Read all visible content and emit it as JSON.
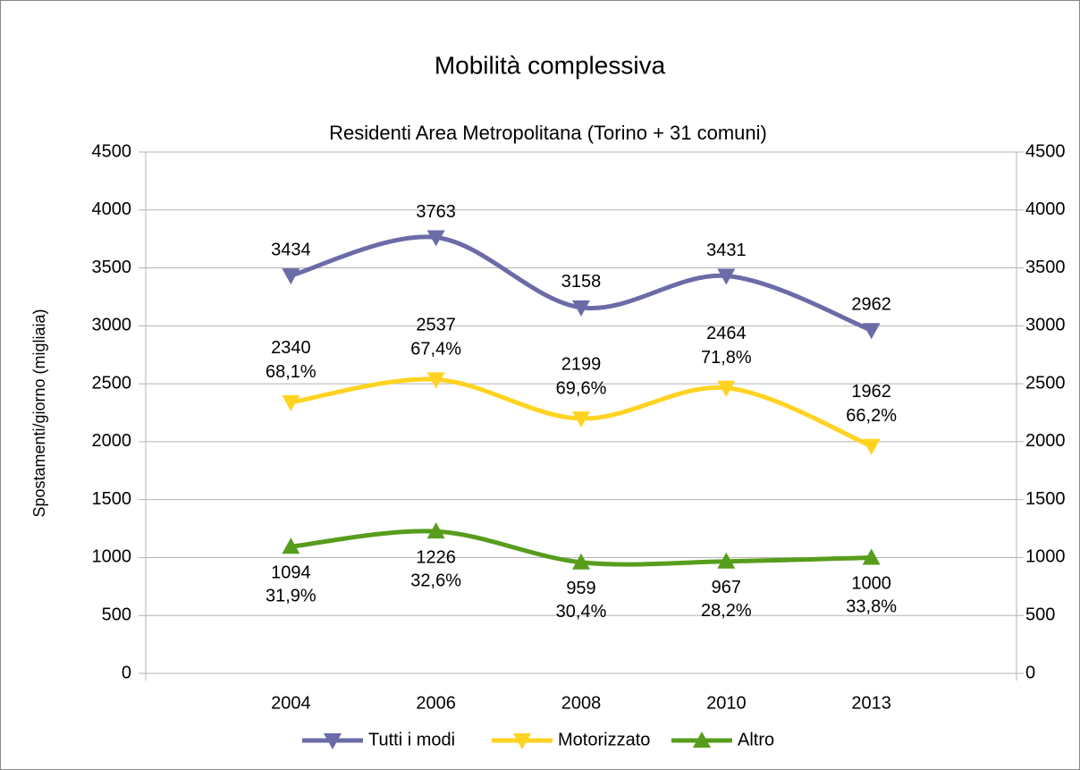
{
  "chart_data": {
    "type": "line",
    "title": "Mobilità complessiva",
    "subtitle": "Residenti Area Metropolitana (Torino + 31 comuni)",
    "y_label": "Spostamenti/giorno (migliaia)",
    "categories": [
      "2004",
      "2006",
      "2008",
      "2010",
      "2013"
    ],
    "series": [
      {
        "name": "Tutti i modi",
        "color": "#6b6ba8",
        "marker": "down",
        "values": [
          3434,
          3763,
          3158,
          3431,
          2962
        ]
      },
      {
        "name": "Motorizzato",
        "color": "#ffd320",
        "marker": "down",
        "values": [
          2340,
          2537,
          2199,
          2464,
          1962
        ],
        "share_labels": [
          "68,1%",
          "67,4%",
          "69,6%",
          "71,8%",
          "66,2%"
        ]
      },
      {
        "name": "Altro",
        "color": "#579d1c",
        "marker": "up",
        "values": [
          1094,
          1226,
          959,
          967,
          1000
        ],
        "share_labels": [
          "31,9%",
          "32,6%",
          "30,4%",
          "28,2%",
          "33,8%"
        ]
      }
    ],
    "ylim": [
      0,
      4500
    ],
    "yticks": [
      0,
      500,
      1000,
      1500,
      2000,
      2500,
      3000,
      3500,
      4000,
      4500
    ],
    "y2lim": [
      0,
      4500
    ],
    "y2ticks": [
      0,
      500,
      1000,
      1500,
      2000,
      2500,
      3000,
      3500,
      4000,
      4500
    ],
    "grid": true,
    "legend": "bottom",
    "smooth": true
  }
}
